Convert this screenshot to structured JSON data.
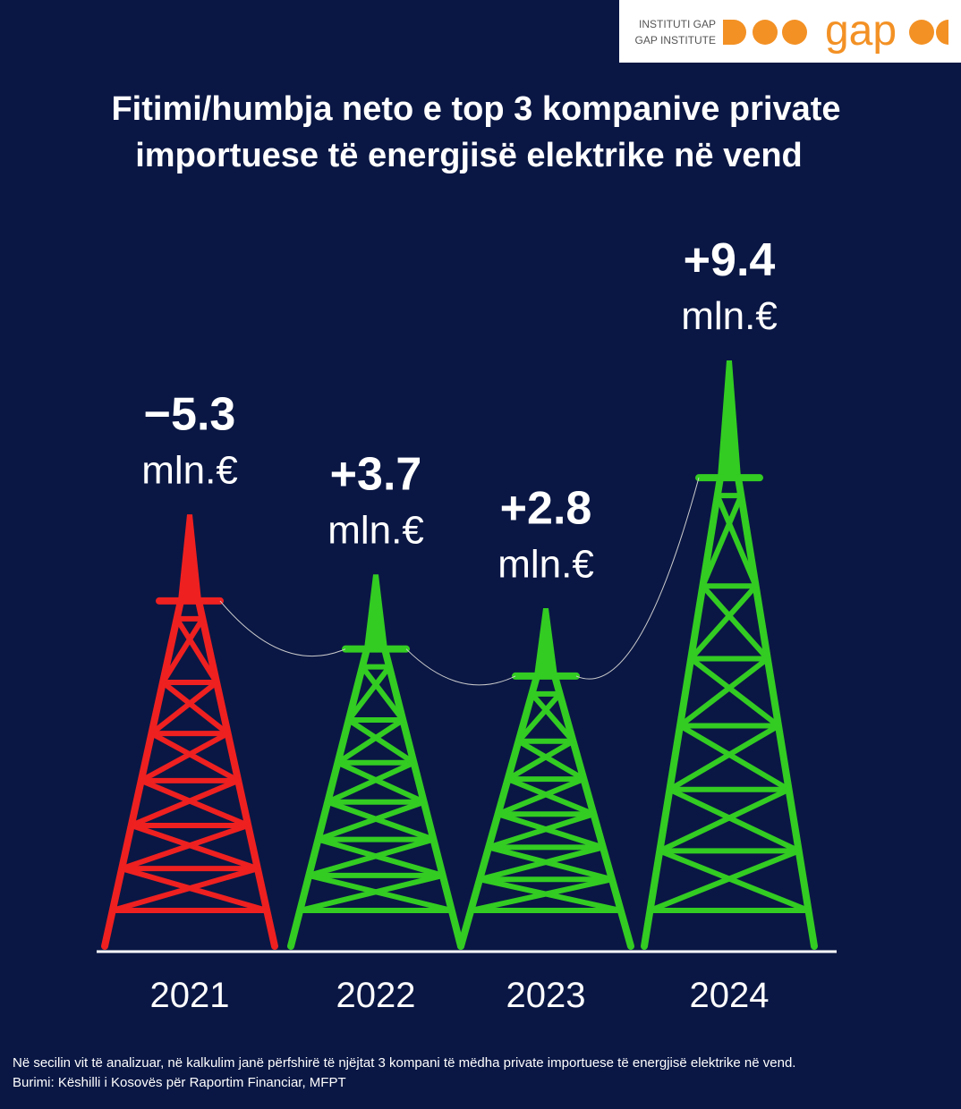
{
  "logo": {
    "line1": "INSTITUTI GAP",
    "line2": "GAP INSTITUTE",
    "wordmark": "gap"
  },
  "chart_data": {
    "type": "pictorial_bar",
    "title": [
      "Fitimi/humbja neto e top 3 kompanive private",
      "importuese të energjisë elektrike në vend"
    ],
    "categories": [
      "2021",
      "2022",
      "2023",
      "2024"
    ],
    "values": [
      -5.3,
      3.7,
      2.8,
      9.4
    ],
    "value_labels": [
      "−5.3",
      "+3.7",
      "+2.8",
      "+9.4"
    ],
    "unit": "mln.€",
    "positive_color": "#33cc22",
    "negative_color": "#ee2020",
    "notes": [
      "Në secilin vit të analizuar, në kalkulim janë përfshirë të njëjtat 3 kompani të mëdha private importuese të energjisë elektrike në vend.",
      "Burimi: Këshilli i Kosovës për Raportim Financiar, MFPT"
    ]
  }
}
